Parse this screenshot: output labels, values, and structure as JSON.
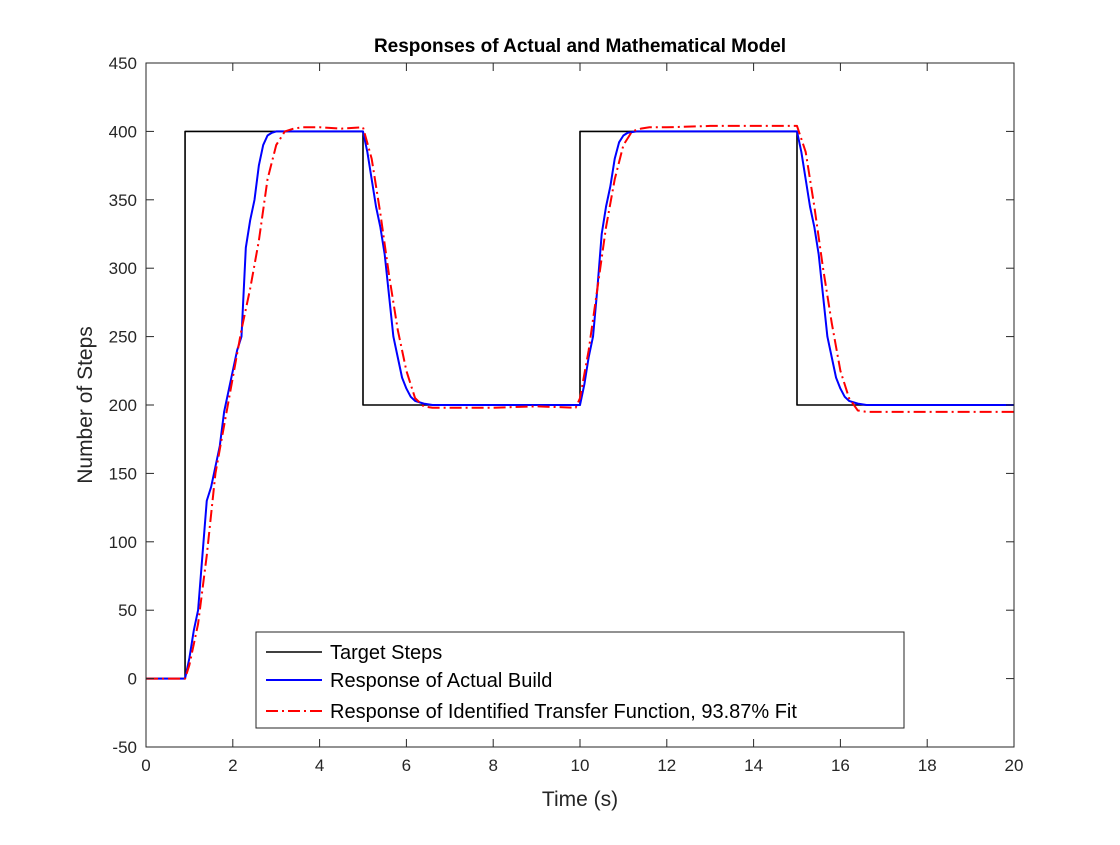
{
  "chart_data": {
    "type": "line",
    "title": "Responses of Actual and Mathematical Model",
    "xlabel": "Time (s)",
    "ylabel": "Number of Steps",
    "xlim": [
      0,
      20
    ],
    "ylim": [
      -50,
      450
    ],
    "xticks": [
      0,
      2,
      4,
      6,
      8,
      10,
      12,
      14,
      16,
      18,
      20
    ],
    "yticks": [
      -50,
      0,
      50,
      100,
      150,
      200,
      250,
      300,
      350,
      400,
      450
    ],
    "grid": false,
    "legend_position": "bottom-center",
    "series": [
      {
        "name": "Target Steps",
        "color": "#000000",
        "style": "solid",
        "x": [
          0,
          0.9,
          0.9,
          5.0,
          5.0,
          10.0,
          10.0,
          15.0,
          15.0,
          20
        ],
        "y": [
          0,
          0,
          400,
          400,
          200,
          200,
          400,
          400,
          200,
          200
        ]
      },
      {
        "name": "Response of Actual Build",
        "color": "#0000ff",
        "style": "solid",
        "x": [
          0,
          0.9,
          1.0,
          1.1,
          1.2,
          1.3,
          1.4,
          1.5,
          1.6,
          1.7,
          1.8,
          1.9,
          2.0,
          2.1,
          2.2,
          2.3,
          2.4,
          2.5,
          2.6,
          2.7,
          2.8,
          2.9,
          3.0,
          3.2,
          3.4,
          3.6,
          4.0,
          4.5,
          5.0,
          5.1,
          5.2,
          5.3,
          5.4,
          5.5,
          5.6,
          5.7,
          5.8,
          5.9,
          6.0,
          6.1,
          6.2,
          6.4,
          6.6,
          7.0,
          8.0,
          9.0,
          9.9,
          10.0,
          10.1,
          10.2,
          10.3,
          10.4,
          10.5,
          10.6,
          10.7,
          10.8,
          10.9,
          11.0,
          11.1,
          11.3,
          11.5,
          12.0,
          13.0,
          14.0,
          15.0,
          15.1,
          15.2,
          15.3,
          15.4,
          15.5,
          15.6,
          15.7,
          15.8,
          15.9,
          16.0,
          16.1,
          16.2,
          16.4,
          16.6,
          17.0,
          18.0,
          19.0,
          20.0
        ],
        "y": [
          0,
          0,
          15,
          35,
          50,
          90,
          130,
          140,
          155,
          170,
          195,
          210,
          225,
          240,
          250,
          315,
          335,
          350,
          375,
          390,
          397,
          399,
          400,
          400,
          400,
          400,
          400,
          400,
          400,
          385,
          365,
          345,
          330,
          310,
          280,
          250,
          235,
          220,
          212,
          206,
          203,
          201,
          200,
          200,
          200,
          200,
          200,
          200,
          215,
          235,
          250,
          285,
          325,
          345,
          360,
          380,
          392,
          397,
          399,
          400,
          400,
          400,
          400,
          400,
          400,
          385,
          365,
          345,
          330,
          310,
          280,
          250,
          235,
          220,
          212,
          206,
          203,
          201,
          200,
          200,
          200,
          200,
          200
        ]
      },
      {
        "name": "Response of Identified Transfer Function, 93.87% Fit",
        "color": "#ff0000",
        "style": "dashdot",
        "x": [
          0,
          0.9,
          1.0,
          1.2,
          1.4,
          1.6,
          1.8,
          2.0,
          2.2,
          2.4,
          2.6,
          2.8,
          3.0,
          3.2,
          3.4,
          3.6,
          4.0,
          4.5,
          5.0,
          5.2,
          5.4,
          5.6,
          5.8,
          6.0,
          6.2,
          6.4,
          6.6,
          7.0,
          8.0,
          9.0,
          9.9,
          10.0,
          10.2,
          10.4,
          10.6,
          10.8,
          11.0,
          11.2,
          11.4,
          11.6,
          12.0,
          13.0,
          14.0,
          15.0,
          15.2,
          15.4,
          15.6,
          15.8,
          16.0,
          16.2,
          16.4,
          16.6,
          17.0,
          18.0,
          19.0,
          20.0
        ],
        "y": [
          0,
          0,
          10,
          40,
          90,
          150,
          185,
          220,
          255,
          285,
          320,
          365,
          390,
          400,
          402,
          403,
          403,
          402,
          403,
          380,
          340,
          295,
          255,
          225,
          205,
          199,
          198,
          198,
          198,
          199,
          198,
          205,
          240,
          285,
          330,
          365,
          390,
          400,
          402,
          403,
          403,
          404,
          404,
          404,
          385,
          345,
          300,
          260,
          225,
          205,
          196,
          195,
          195,
          195,
          195,
          195
        ]
      }
    ]
  }
}
